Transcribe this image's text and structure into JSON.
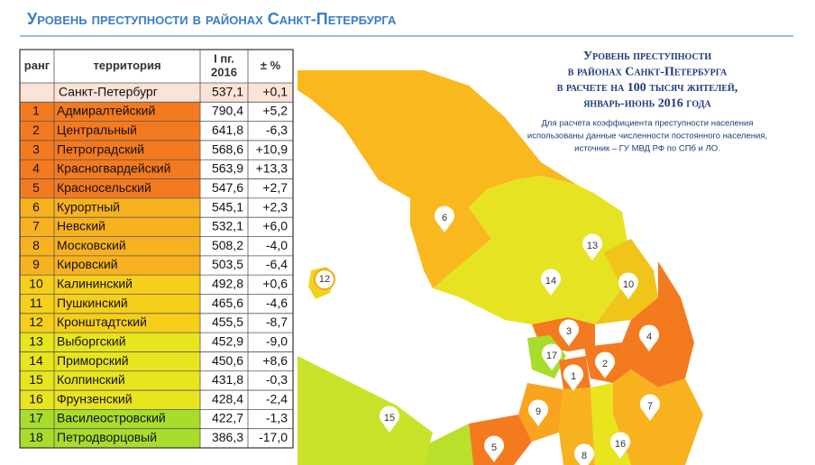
{
  "header": {
    "title": "Уровень преступности в районах Санкт-Петербурга"
  },
  "table": {
    "columns": [
      "ранг",
      "территория",
      [
        "I пг.",
        "2016"
      ],
      "± %"
    ],
    "total": {
      "territory": "Санкт-Петербург",
      "value": "537,1",
      "change": "+0,1",
      "color": "#fbe3d8"
    },
    "rows": [
      {
        "rank": "1",
        "territory": "Адмиралтейский",
        "value": "790,4",
        "change": "+5,2",
        "color": "#f47a20"
      },
      {
        "rank": "2",
        "territory": "Центральный",
        "value": "641,8",
        "change": "-6,3",
        "color": "#f47a20"
      },
      {
        "rank": "3",
        "territory": "Петроградский",
        "value": "568,6",
        "change": "+10,9",
        "color": "#f47a20"
      },
      {
        "rank": "4",
        "territory": "Красногвардейский",
        "value": "563,9",
        "change": "+13,3",
        "color": "#f47a20"
      },
      {
        "rank": "5",
        "territory": "Красносельский",
        "value": "547,6",
        "change": "+2,7",
        "color": "#f47a20"
      },
      {
        "rank": "6",
        "territory": "Курортный",
        "value": "545,1",
        "change": "+2,3",
        "color": "#f9b21f"
      },
      {
        "rank": "7",
        "territory": "Невский",
        "value": "532,1",
        "change": "+6,0",
        "color": "#f9b21f"
      },
      {
        "rank": "8",
        "territory": "Московский",
        "value": "508,2",
        "change": "-4,0",
        "color": "#f9b21f"
      },
      {
        "rank": "9",
        "territory": "Кировский",
        "value": "503,5",
        "change": "-6,4",
        "color": "#f9b21f"
      },
      {
        "rank": "10",
        "territory": "Калининский",
        "value": "492,8",
        "change": "+0,6",
        "color": "#f6cf1a"
      },
      {
        "rank": "11",
        "territory": "Пушкинский",
        "value": "465,6",
        "change": "-4,6",
        "color": "#f6cf1a"
      },
      {
        "rank": "12",
        "territory": "Кронштадтский",
        "value": "455,5",
        "change": "-8,7",
        "color": "#f6cf1a"
      },
      {
        "rank": "13",
        "territory": "Выборгский",
        "value": "452,9",
        "change": "-9,0",
        "color": "#e8e41e"
      },
      {
        "rank": "14",
        "territory": "Приморский",
        "value": "450,6",
        "change": "+8,6",
        "color": "#e8e41e"
      },
      {
        "rank": "15",
        "territory": "Колпинский",
        "value": "431,8",
        "change": "-0,3",
        "color": "#e8e41e"
      },
      {
        "rank": "16",
        "territory": "Фрунзенский",
        "value": "428,4",
        "change": "-2,4",
        "color": "#e8e41e"
      },
      {
        "rank": "17",
        "territory": "Василеостровский",
        "value": "422,7",
        "change": "-1,3",
        "color": "#a8dd2c"
      },
      {
        "rank": "18",
        "territory": "Петродворцовый",
        "value": "386,3",
        "change": "-17,0",
        "color": "#a8dd2c"
      }
    ]
  },
  "map": {
    "heading": [
      "Уровень преступности",
      "в районах Санкт-Петербурга",
      "в расчете на 100 тысяч жителей,",
      "январь-июнь 2016 года"
    ],
    "note": [
      "Для расчета коэффициента преступности населения",
      "использованы данные численности постоянного населения,",
      "источник – ГУ МВД РФ по СПб и ЛО."
    ],
    "markers": [
      "6",
      "13",
      "14",
      "10",
      "12",
      "3",
      "4",
      "17",
      "1",
      "2",
      "9",
      "7",
      "15",
      "5",
      "8",
      "16"
    ]
  }
}
